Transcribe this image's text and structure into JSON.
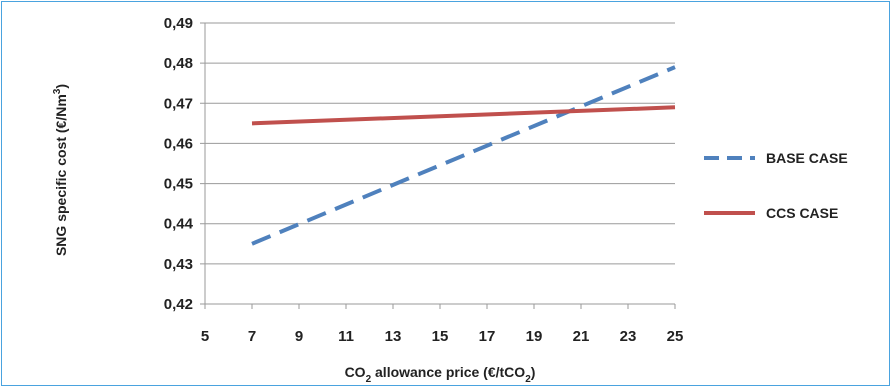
{
  "chart_data": {
    "type": "line",
    "title": "",
    "xlabel": {
      "main": "CO",
      "sub1": "2",
      "mid": " allowance price  (€/tCO",
      "sub2": "2",
      "end": ")"
    },
    "ylabel": {
      "main": "SNG specific cost    (€/Nm",
      "sup": "3",
      "end": ")"
    },
    "xlim": [
      5,
      25
    ],
    "ylim": [
      0.42,
      0.49
    ],
    "x_ticks": [
      5,
      7,
      9,
      11,
      13,
      15,
      17,
      19,
      21,
      23,
      25
    ],
    "y_ticks": [
      0.42,
      0.43,
      0.44,
      0.45,
      0.46,
      0.47,
      0.48,
      0.49
    ],
    "grid": "horizontal",
    "legend_position": "right",
    "series": [
      {
        "name": "BASE CASE",
        "color": "#4f81bd",
        "dashed": true,
        "x": [
          7,
          25
        ],
        "y": [
          0.435,
          0.479
        ]
      },
      {
        "name": "CCS CASE",
        "color": "#c0504d",
        "dashed": false,
        "x": [
          7,
          25
        ],
        "y": [
          0.465,
          0.469
        ]
      }
    ]
  }
}
